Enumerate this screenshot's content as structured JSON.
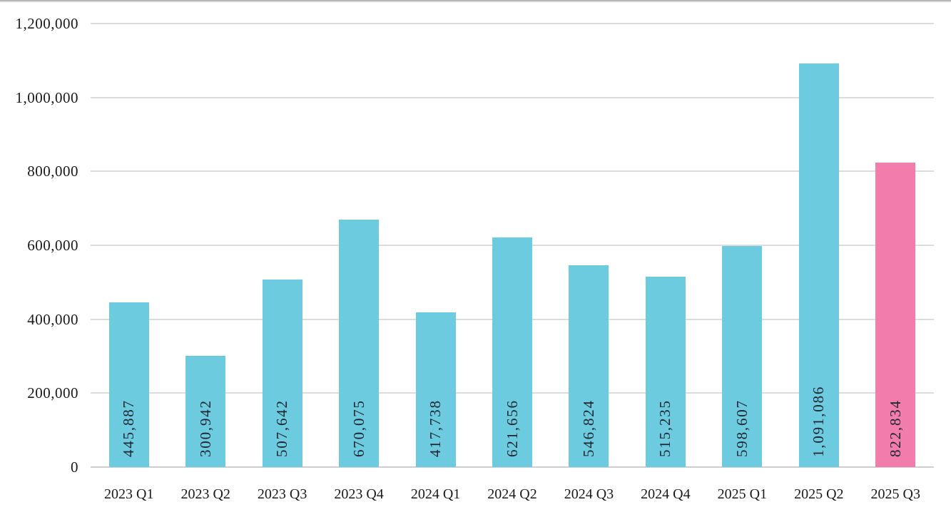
{
  "chart_data": {
    "type": "bar",
    "title": "",
    "xlabel": "",
    "ylabel": "",
    "categories": [
      "2023 Q1",
      "2023 Q2",
      "2023 Q3",
      "2023 Q4",
      "2024 Q1",
      "2024 Q2",
      "2024 Q3",
      "2024 Q4",
      "2025 Q1",
      "2025 Q2",
      "2025 Q3"
    ],
    "values": [
      445887,
      300942,
      507642,
      670075,
      417738,
      621656,
      546824,
      515235,
      598607,
      1091086,
      822834
    ],
    "value_labels": [
      "445,887",
      "300,942",
      "507,642",
      "670,075",
      "417,738",
      "621,656",
      "546,824",
      "515,235",
      "598,607",
      "1,091,086",
      "822,834"
    ],
    "ylim": [
      0,
      1200000
    ],
    "ytick_step": 200000,
    "ytick_labels": [
      "0",
      "200,000",
      "400,000",
      "600,000",
      "800,000",
      "1,000,000",
      "1,200,000"
    ],
    "grid": "horizontal",
    "legend": "none",
    "label_position": "inside-base",
    "label_rotation": -90,
    "bar_color": "#6CCBDE",
    "highlight_color": "#F27DAD",
    "highlight_index": 10,
    "gridline_color": "#DCDCDC",
    "axis_text_color": "#1a1a1a",
    "bar_label_text_color": "#1c2430"
  }
}
